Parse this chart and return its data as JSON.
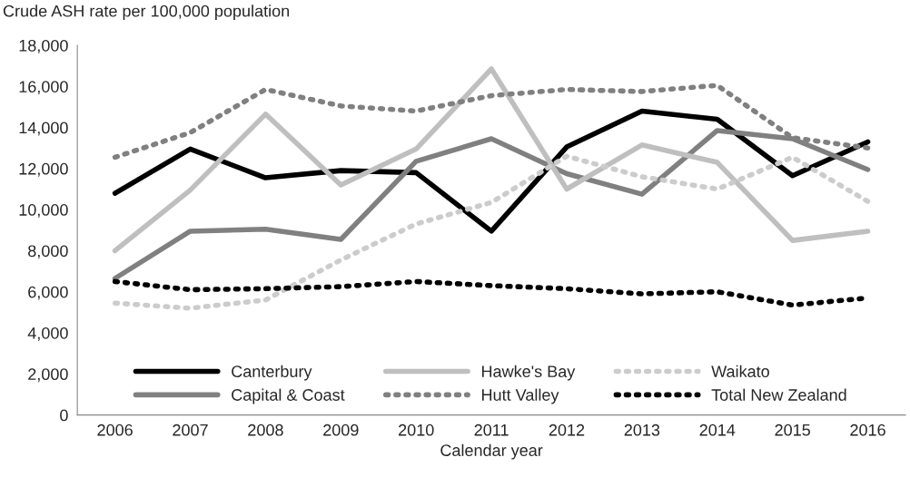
{
  "chart_data": {
    "type": "line",
    "ylabel": "Crude ASH rate per 100,000 population",
    "xlabel": "Calendar year",
    "categories": [
      "2006",
      "2007",
      "2008",
      "2009",
      "2010",
      "2011",
      "2012",
      "2013",
      "2014",
      "2015",
      "2016"
    ],
    "ylim": [
      0,
      18000
    ],
    "yticks": [
      {
        "value": 0,
        "label": "0"
      },
      {
        "value": 2000,
        "label": "2,000"
      },
      {
        "value": 4000,
        "label": "4,000"
      },
      {
        "value": 6000,
        "label": "6,000"
      },
      {
        "value": 8000,
        "label": "8,000"
      },
      {
        "value": 10000,
        "label": "10,000"
      },
      {
        "value": 12000,
        "label": "12,000"
      },
      {
        "value": 14000,
        "label": "14,000"
      },
      {
        "value": 16000,
        "label": "16,000"
      },
      {
        "value": 18000,
        "label": "18,000"
      }
    ],
    "grid": false,
    "legend": "bottom",
    "marker": "none",
    "series": [
      {
        "name": "Canterbury",
        "color": "#000000",
        "line_style": "solid",
        "values": [
          10800,
          12950,
          11550,
          11900,
          11800,
          8950,
          13050,
          14800,
          14400,
          11650,
          13300
        ]
      },
      {
        "name": "Capital & Coast",
        "color": "#808080",
        "line_style": "solid",
        "values": [
          6650,
          8950,
          9050,
          8550,
          12350,
          13450,
          11750,
          10750,
          13850,
          13450,
          11950
        ]
      },
      {
        "name": "Hawke's Bay",
        "color": "#bfbfbf",
        "line_style": "solid",
        "values": [
          8000,
          10950,
          14650,
          11200,
          12950,
          16850,
          11000,
          13150,
          12300,
          8500,
          8950
        ]
      },
      {
        "name": "Hutt Valley",
        "color": "#808080",
        "line_style": "dotted",
        "values": [
          12550,
          13750,
          15850,
          15050,
          14800,
          15550,
          15850,
          15750,
          16050,
          13500,
          13000
        ]
      },
      {
        "name": "Waikato",
        "color": "#cccccc",
        "line_style": "dotted",
        "values": [
          5450,
          5200,
          5600,
          7550,
          9300,
          10350,
          12600,
          11600,
          11000,
          12550,
          10400
        ]
      },
      {
        "name": "Total New Zealand",
        "color": "#000000",
        "line_style": "dotted",
        "values": [
          6500,
          6100,
          6150,
          6250,
          6500,
          6300,
          6150,
          5900,
          6000,
          5350,
          5700
        ]
      }
    ]
  }
}
